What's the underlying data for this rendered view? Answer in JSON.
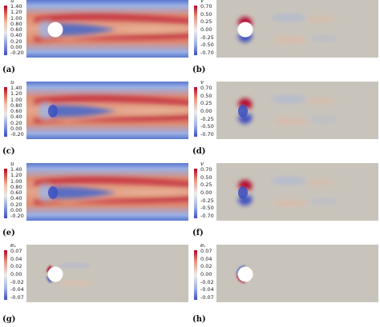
{
  "panels": [
    {
      "label": "(a)",
      "variable": "u",
      "ticks": [
        "1.40",
        "1.20",
        "1.00",
        "0.80",
        "0.60",
        "0.40",
        "0.20",
        "0.00",
        "-0.20"
      ],
      "kind": "u",
      "circle": true
    },
    {
      "label": "(b)",
      "variable": "v",
      "ticks": [
        "0.70",
        "0.50",
        "0.25",
        "0.00",
        "-0.25",
        "-0.50",
        "-0.70"
      ],
      "kind": "v",
      "circle": true
    },
    {
      "label": "(c)",
      "variable": "u",
      "ticks": [
        "1.40",
        "1.20",
        "1.00",
        "0.80",
        "0.60",
        "0.40",
        "0.20",
        "0.00",
        "-0.20"
      ],
      "kind": "u",
      "circle": false
    },
    {
      "label": "(d)",
      "variable": "v",
      "ticks": [
        "0.70",
        "0.50",
        "0.25",
        "0.00",
        "-0.25",
        "-0.50",
        "-0.70"
      ],
      "kind": "v",
      "circle": false
    },
    {
      "label": "(e)",
      "variable": "u",
      "ticks": [
        "1.40",
        "1.20",
        "1.00",
        "0.80",
        "0.60",
        "0.40",
        "0.20",
        "0.00",
        "-0.20"
      ],
      "kind": "u",
      "circle": false
    },
    {
      "label": "(f)",
      "variable": "v",
      "ticks": [
        "0.70",
        "0.50",
        "0.25",
        "0.00",
        "-0.25",
        "-0.50",
        "-0.70"
      ],
      "kind": "v",
      "circle": false
    },
    {
      "label": "(g)",
      "variable": "eᵤ",
      "ticks": [
        "0.07",
        "0.04",
        "0.02",
        "0.00",
        "-0.02",
        "-0.04",
        "-0.07"
      ],
      "kind": "eu",
      "circle": true
    },
    {
      "label": "(h)",
      "variable": "eᵥ",
      "ticks": [
        "0.07",
        "0.04",
        "0.02",
        "0.00",
        "-0.02",
        "-0.04",
        "-0.07"
      ],
      "kind": "ev",
      "circle": true
    }
  ],
  "colors": {
    "red": "#b40426",
    "blue": "#3b4cc0",
    "neutral": "#c9c4bb",
    "warm": "#e8b79a"
  }
}
